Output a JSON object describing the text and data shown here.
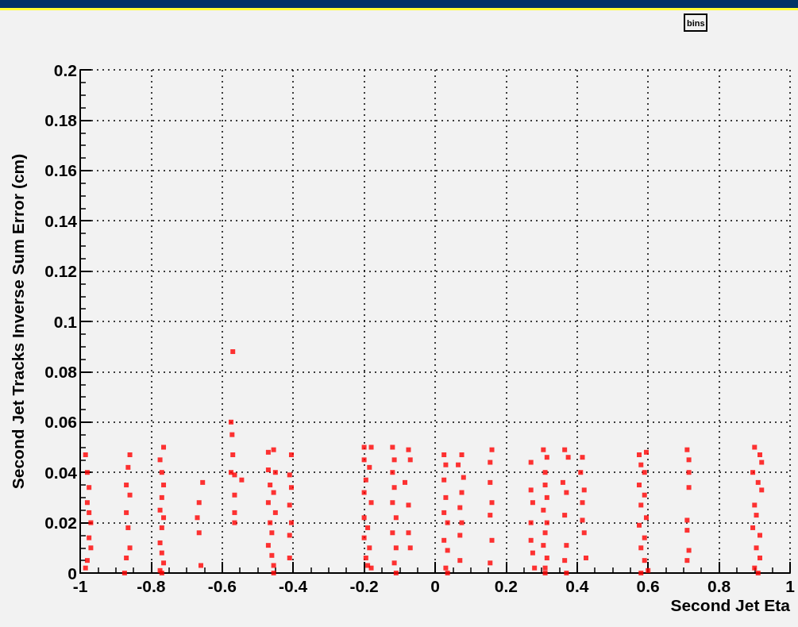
{
  "chart_data": {
    "type": "scatter",
    "title": "bins",
    "xlabel": "Second Jet Eta",
    "ylabel": "Second Jet Tracks Inverse Sum Error (cm)",
    "xlim": [
      -1,
      1
    ],
    "xticks": [
      -1,
      -0.8,
      -0.6,
      -0.4,
      -0.2,
      0,
      0.2,
      0.4,
      0.6,
      0.8,
      1
    ],
    "ylim": [
      0,
      0.2
    ],
    "yticks": [
      0,
      0.02,
      0.04,
      0.06,
      0.08,
      0.1,
      0.12,
      0.14,
      0.16,
      0.18,
      0.2
    ],
    "grid": true,
    "marker": "square",
    "series": [
      {
        "color": "#ff0000",
        "x": [
          -0.985,
          -0.98,
          -0.975,
          -0.98,
          -0.975,
          -0.97,
          -0.975,
          -0.97,
          -0.98,
          -0.985,
          -0.86,
          -0.865,
          -0.87,
          -0.86,
          -0.87,
          -0.865,
          -0.86,
          -0.87,
          -0.875,
          -0.765,
          -0.775,
          -0.77,
          -0.765,
          -0.77,
          -0.775,
          -0.765,
          -0.77,
          -0.775,
          -0.77,
          -0.765,
          -0.775,
          -0.77,
          -0.655,
          -0.665,
          -0.67,
          -0.665,
          -0.66,
          -0.57,
          -0.575,
          -0.572,
          -0.57,
          -0.575,
          -0.565,
          -0.545,
          -0.565,
          -0.565,
          -0.565,
          -0.47,
          -0.455,
          -0.47,
          -0.45,
          -0.465,
          -0.455,
          -0.47,
          -0.45,
          -0.465,
          -0.46,
          -0.47,
          -0.46,
          -0.455,
          -0.455,
          -0.405,
          -0.41,
          -0.405,
          -0.41,
          -0.405,
          -0.41,
          -0.41,
          -0.2,
          -0.18,
          -0.2,
          -0.185,
          -0.195,
          -0.2,
          -0.18,
          -0.2,
          -0.19,
          -0.2,
          -0.185,
          -0.195,
          -0.19,
          -0.18,
          -0.12,
          -0.115,
          -0.12,
          -0.115,
          -0.12,
          -0.11,
          -0.12,
          -0.11,
          -0.115,
          -0.11,
          -0.075,
          -0.07,
          -0.085,
          -0.075,
          -0.075,
          -0.07,
          0.025,
          0.03,
          0.025,
          0.03,
          0.025,
          0.035,
          0.025,
          0.035,
          0.03,
          0.035,
          0.075,
          0.065,
          0.08,
          0.075,
          0.07,
          0.075,
          0.07,
          0.07,
          0.16,
          0.155,
          0.155,
          0.16,
          0.155,
          0.16,
          0.155,
          0.27,
          0.27,
          0.275,
          0.27,
          0.27,
          0.275,
          0.28,
          0.305,
          0.315,
          0.31,
          0.31,
          0.315,
          0.305,
          0.315,
          0.31,
          0.305,
          0.315,
          0.31,
          0.31,
          0.365,
          0.375,
          0.36,
          0.37,
          0.365,
          0.37,
          0.365,
          0.37,
          0.415,
          0.41,
          0.42,
          0.415,
          0.415,
          0.42,
          0.425,
          0.575,
          0.595,
          0.58,
          0.59,
          0.575,
          0.59,
          0.58,
          0.595,
          0.575,
          0.59,
          0.58,
          0.59,
          0.58,
          0.6,
          0.71,
          0.715,
          0.715,
          0.715,
          0.71,
          0.71,
          0.715,
          0.71,
          0.9,
          0.915,
          0.92,
          0.895,
          0.91,
          0.92,
          0.9,
          0.905,
          0.895,
          0.915,
          0.905,
          0.915,
          0.9,
          0.91
        ],
        "values": [
          0.047,
          0.04,
          0.034,
          0.028,
          0.024,
          0.02,
          0.014,
          0.01,
          0.005,
          0.002,
          0.047,
          0.042,
          0.035,
          0.031,
          0.024,
          0.018,
          0.01,
          0.006,
          0,
          0.05,
          0.045,
          0.04,
          0.035,
          0.03,
          0.025,
          0.022,
          0.018,
          0.012,
          0.008,
          0.004,
          0.001,
          0,
          0.036,
          0.028,
          0.022,
          0.016,
          0.003,
          0.088,
          0.06,
          0.055,
          0.047,
          0.04,
          0.039,
          0.037,
          0.031,
          0.024,
          0.02,
          0.048,
          0.049,
          0.041,
          0.04,
          0.035,
          0.032,
          0.028,
          0.024,
          0.02,
          0.016,
          0.011,
          0.007,
          0.003,
          0,
          0.047,
          0.039,
          0.034,
          0.027,
          0.02,
          0.015,
          0.006,
          0.05,
          0.05,
          0.045,
          0.042,
          0.037,
          0.032,
          0.028,
          0.022,
          0.018,
          0.014,
          0.01,
          0.006,
          0.003,
          0.002,
          0.05,
          0.045,
          0.04,
          0.034,
          0.028,
          0.022,
          0.016,
          0.01,
          0.004,
          0,
          0.049,
          0.045,
          0.036,
          0.027,
          0.016,
          0.01,
          0.047,
          0.043,
          0.037,
          0.03,
          0.024,
          0.02,
          0.013,
          0.009,
          0.002,
          0,
          0.047,
          0.043,
          0.038,
          0.032,
          0.026,
          0.02,
          0.015,
          0.005,
          0.049,
          0.044,
          0.036,
          0.028,
          0.023,
          0.013,
          0.004,
          0.044,
          0.033,
          0.028,
          0.02,
          0.013,
          0.008,
          0.002,
          0.049,
          0.046,
          0.04,
          0.035,
          0.03,
          0.025,
          0.02,
          0.016,
          0.011,
          0.006,
          0.002,
          0,
          0.049,
          0.046,
          0.036,
          0.032,
          0.023,
          0.011,
          0.005,
          0,
          0.046,
          0.04,
          0.033,
          0.028,
          0.021,
          0.016,
          0.006,
          0.047,
          0.048,
          0.043,
          0.04,
          0.035,
          0.031,
          0.027,
          0.022,
          0.019,
          0.014,
          0.01,
          0.005,
          0,
          0.001,
          0.049,
          0.045,
          0.04,
          0.034,
          0.021,
          0.017,
          0.009,
          0.005,
          0.05,
          0.047,
          0.044,
          0.04,
          0.036,
          0.033,
          0.027,
          0.023,
          0.018,
          0.015,
          0.01,
          0.006,
          0.002,
          0
        ]
      }
    ]
  }
}
